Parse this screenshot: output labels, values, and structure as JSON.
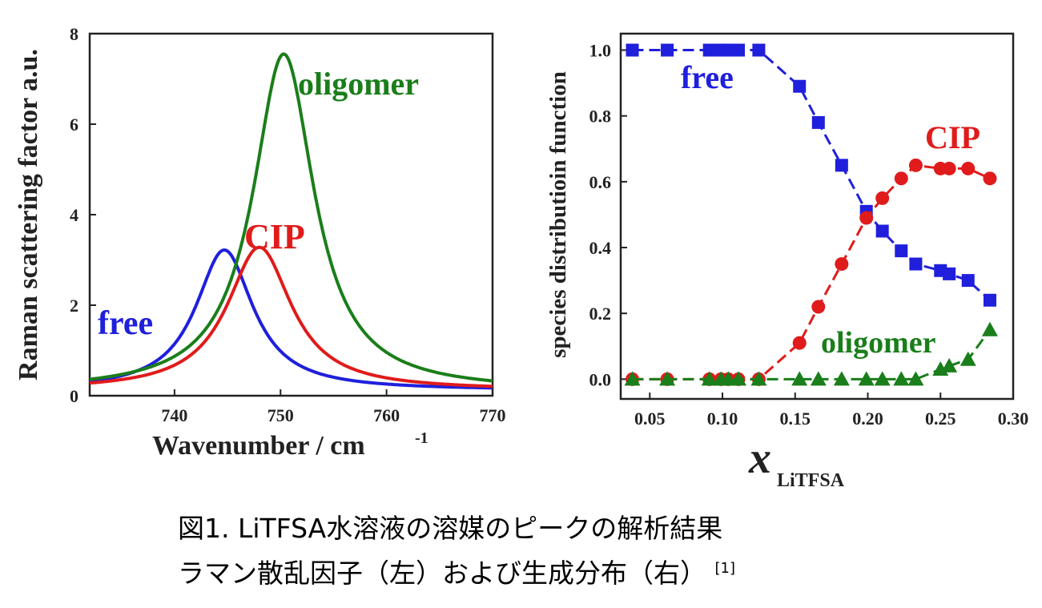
{
  "chart_data": [
    {
      "type": "line",
      "xlabel": "Wavenumber / cm",
      "xlabel_sup": "-1",
      "ylabel": "Raman scattering factor a.u.",
      "xlim": [
        732,
        770
      ],
      "ylim": [
        0,
        8
      ],
      "xticks": [
        "740",
        "750",
        "760",
        "770"
      ],
      "yticks": [
        "0",
        "2",
        "4",
        "6",
        "8"
      ],
      "series": [
        {
          "name": "free",
          "color": "#1f1fdc",
          "peak_x": 744.7,
          "peak_y": 3.22,
          "hwhm": 3.3,
          "base": 0.12
        },
        {
          "name": "CIP",
          "color": "#e01b1b",
          "peak_x": 748.0,
          "peak_y": 3.28,
          "hwhm": 3.7,
          "base": 0.12
        },
        {
          "name": "oligomer",
          "color": "#1a7e1a",
          "peak_x": 750.3,
          "peak_y": 7.55,
          "hwhm": 3.5,
          "base": 0.1
        }
      ]
    },
    {
      "type": "scatter",
      "xlabel_main": "x",
      "xlabel_sub": "LiTFSA",
      "ylabel": "species distributioin function",
      "xlim": [
        0.03,
        0.3
      ],
      "ylim": [
        -0.06,
        1.05
      ],
      "xticks": [
        "0.05",
        "0.10",
        "0.15",
        "0.20",
        "0.25",
        "0.30"
      ],
      "yticks": [
        "0.0",
        "0.2",
        "0.4",
        "0.6",
        "0.8",
        "1.0"
      ],
      "x": [
        0.038,
        0.062,
        0.091,
        0.099,
        0.104,
        0.111,
        0.125,
        0.153,
        0.166,
        0.182,
        0.199,
        0.21,
        0.223,
        0.233,
        0.25,
        0.256,
        0.269,
        0.284
      ],
      "series": [
        {
          "name": "free",
          "color": "#1f1fdc",
          "marker": "square",
          "values": [
            1.0,
            1.0,
            1.0,
            1.0,
            1.0,
            1.0,
            1.0,
            0.89,
            0.78,
            0.65,
            0.51,
            0.45,
            0.39,
            0.35,
            0.33,
            0.32,
            0.3,
            0.24
          ]
        },
        {
          "name": "CIP",
          "color": "#e01b1b",
          "marker": "circle",
          "values": [
            0.0,
            0.0,
            0.0,
            0.0,
            0.0,
            0.0,
            0.0,
            0.11,
            0.22,
            0.35,
            0.49,
            0.55,
            0.61,
            0.65,
            0.64,
            0.64,
            0.64,
            0.61
          ]
        },
        {
          "name": "oligomer",
          "color": "#1a7e1a",
          "marker": "triangle",
          "values": [
            0.0,
            0.0,
            0.0,
            0.0,
            0.0,
            0.0,
            0.0,
            0.0,
            0.0,
            0.0,
            0.0,
            0.0,
            0.0,
            0.0,
            0.03,
            0.04,
            0.06,
            0.15
          ]
        }
      ]
    }
  ],
  "caption": {
    "line1": "図1. LiTFSA水溶液の溶媒のピークの解析結果",
    "line2": "ラマン散乱因子（左）および生成分布（右）",
    "ref": "[1]"
  }
}
